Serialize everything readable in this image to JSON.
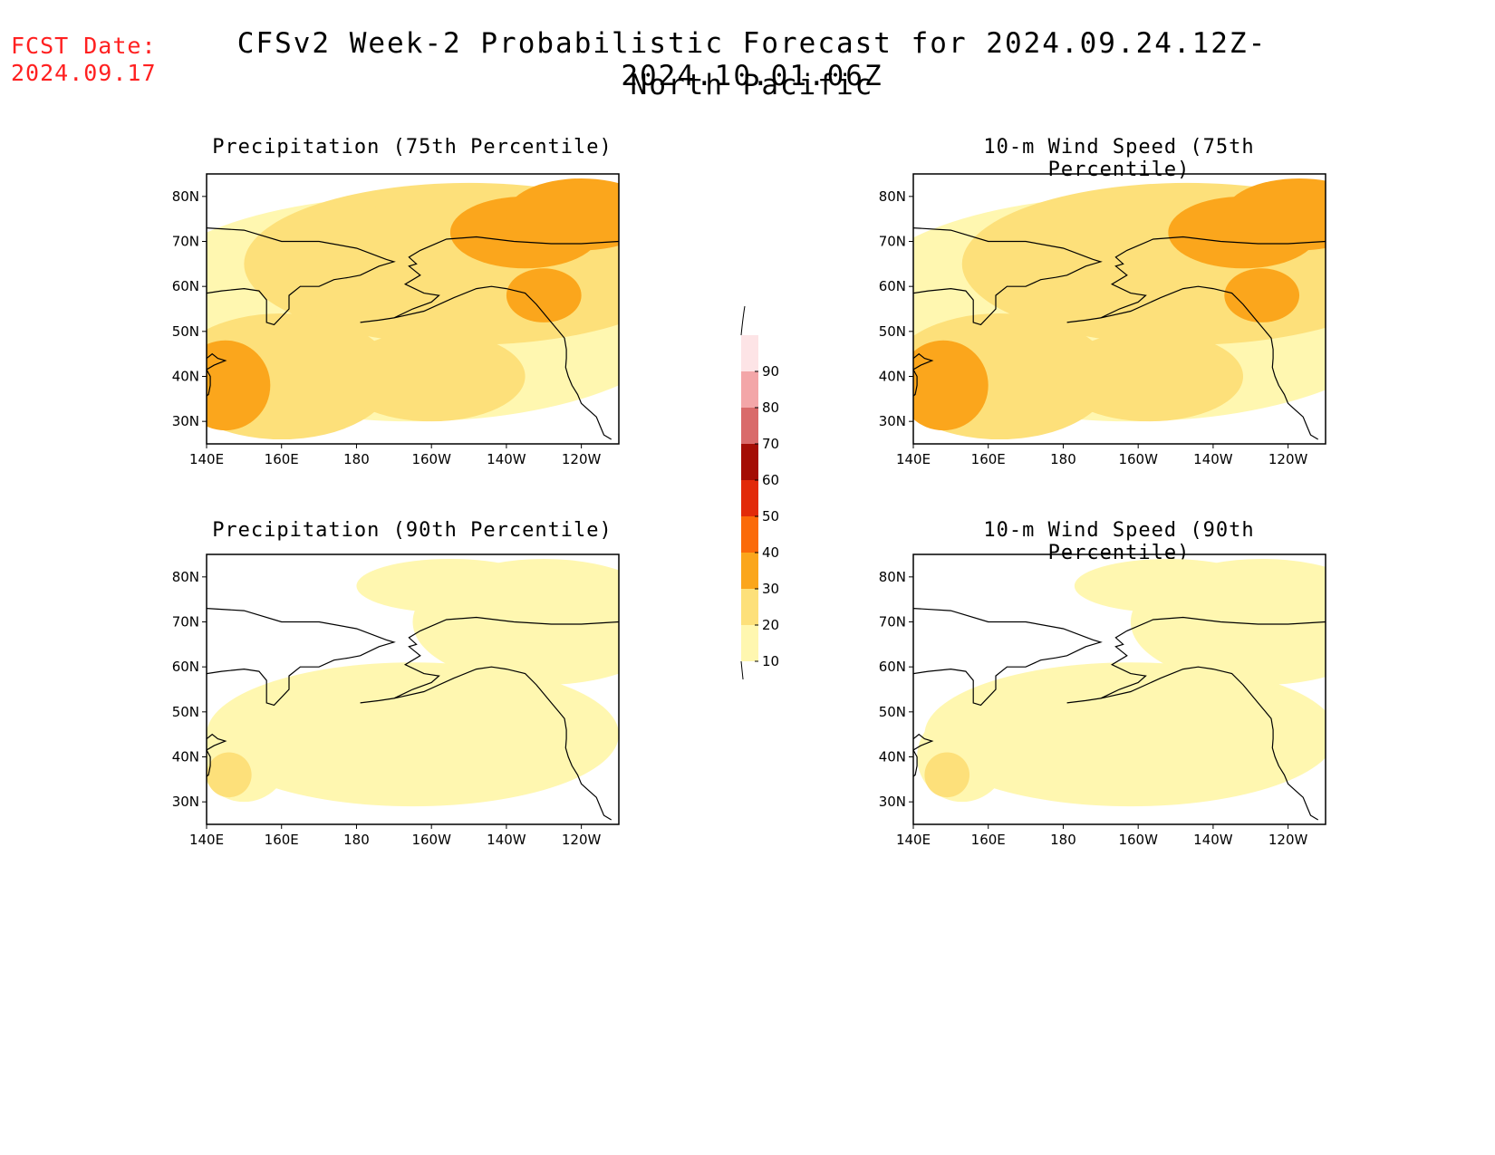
{
  "fcst_date_label": "FCST Date:",
  "fcst_date_value": "2024.09.17",
  "title_line1": "CFSv2 Week-2 Probabilistic Forecast for 2024.09.24.12Z-2024.10.01.06Z",
  "title_line2": "North Pacific",
  "panels": [
    {
      "title": "Precipitation (75th Percentile)",
      "level": "high"
    },
    {
      "title": "10-m Wind Speed (75th Percentile)",
      "level": "high"
    },
    {
      "title": "Precipitation (90th Percentile)",
      "level": "low"
    },
    {
      "title": "10-m Wind Speed (90th Percentile)",
      "level": "low"
    }
  ],
  "lat_labels": [
    "80N",
    "70N",
    "60N",
    "50N",
    "40N",
    "30N"
  ],
  "lon_labels": [
    "140E",
    "160E",
    "180",
    "160W",
    "140W",
    "120W"
  ],
  "colorbar": {
    "ticks": [
      "10",
      "20",
      "30",
      "40",
      "50",
      "60",
      "70",
      "80",
      "90"
    ],
    "colors": [
      "#fff7b0",
      "#fde07a",
      "#fba61c",
      "#fb6a0a",
      "#e22a0a",
      "#a40d05",
      "#d96a6a",
      "#f3a6a8",
      "#fde4e6"
    ]
  }
}
